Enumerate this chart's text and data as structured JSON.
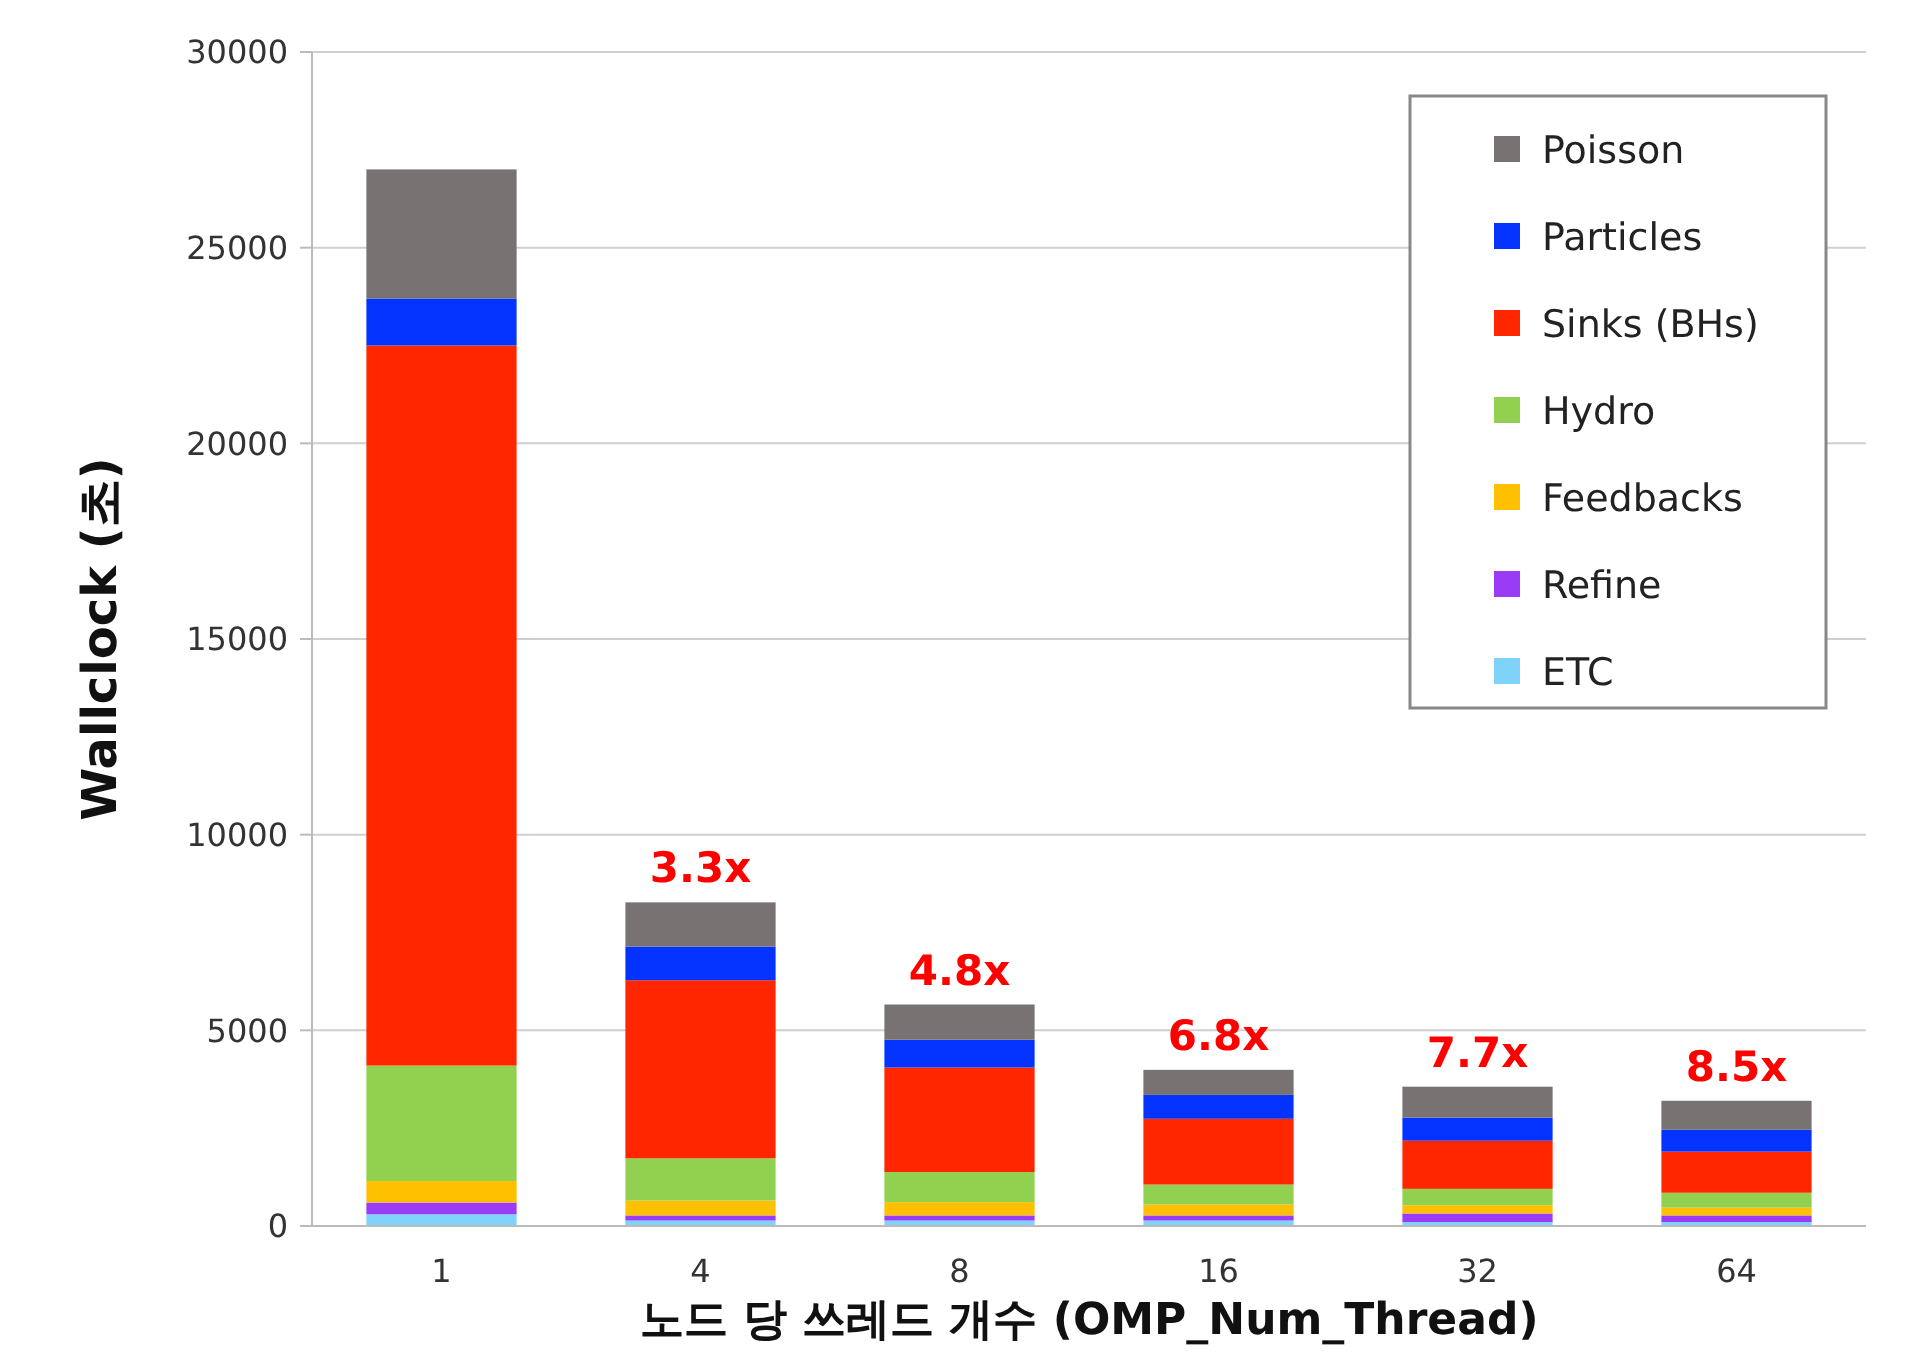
{
  "chart_data": {
    "type": "bar",
    "stacked": true,
    "xlabel": "노드 당 쓰레드 개수 (OMP_Num_Thread)",
    "ylabel": "Wallclock (초)",
    "categories": [
      "1",
      "4",
      "8",
      "16",
      "32",
      "64"
    ],
    "series": [
      {
        "name": "ETC",
        "color": "#7fd3fa",
        "values": [
          300,
          140,
          140,
          140,
          100,
          100
        ]
      },
      {
        "name": "Refine",
        "color": "#9a3cf6",
        "values": [
          300,
          130,
          130,
          130,
          220,
          170
        ]
      },
      {
        "name": "Feedbacks",
        "color": "#ffc000",
        "values": [
          550,
          380,
          340,
          280,
          210,
          200
        ]
      },
      {
        "name": "Hydro",
        "color": "#92d050",
        "values": [
          2950,
          1080,
          770,
          510,
          420,
          380
        ]
      },
      {
        "name": "Sinks (BHs)",
        "color": "#ff2600",
        "values": [
          18400,
          4550,
          2670,
          1680,
          1230,
          1050
        ]
      },
      {
        "name": "Particles",
        "color": "#0433ff",
        "values": [
          1200,
          860,
          710,
          610,
          590,
          560
        ]
      },
      {
        "name": "Poisson",
        "color": "#787272",
        "values": [
          3300,
          1130,
          900,
          640,
          790,
          740
        ]
      }
    ],
    "ylim": [
      0,
      30000
    ],
    "yticks": [
      0,
      5000,
      10000,
      15000,
      20000,
      25000,
      30000
    ],
    "grid": "y",
    "legend": "top right",
    "annotations": [
      {
        "text": "3.3x",
        "x": "4",
        "y": 8270
      },
      {
        "text": "4.8x",
        "x": "8",
        "y": 5660
      },
      {
        "text": "6.8x",
        "x": "16",
        "y": 3990
      },
      {
        "text": "7.7x",
        "x": "32",
        "y": 3560
      },
      {
        "text": "8.5x",
        "x": "64",
        "y": 3200
      }
    ]
  }
}
